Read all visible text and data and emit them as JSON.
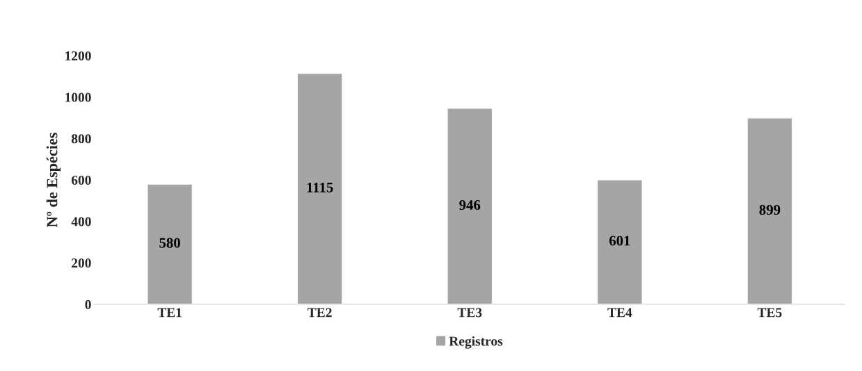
{
  "chart_data": {
    "type": "bar",
    "ylabel": "Nº de Espécies",
    "categories": [
      "TE1",
      "TE2",
      "TE3",
      "TE4",
      "TE5"
    ],
    "series": [
      {
        "name": "Registros",
        "color": "#a5a5a5",
        "values": [
          580,
          1115,
          946,
          601,
          899
        ]
      }
    ],
    "ylim": [
      0,
      1200
    ],
    "yticks": [
      0,
      200,
      400,
      600,
      800,
      1000,
      1200
    ],
    "data_labels": true,
    "legend": "bottom",
    "grid": false
  }
}
